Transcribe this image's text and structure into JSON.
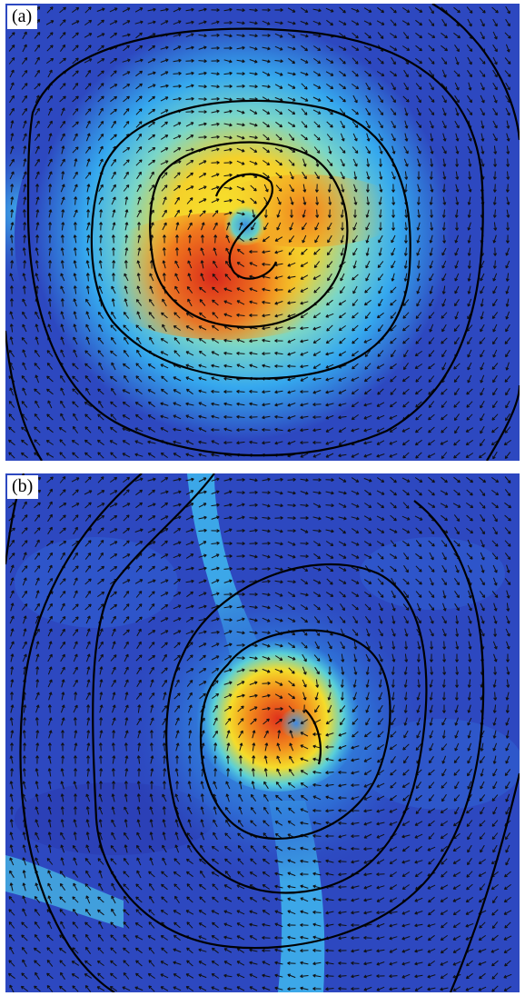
{
  "panels": [
    {
      "id": "a",
      "label": "(a)",
      "colormap": [
        "#2a3fb4",
        "#2f66d8",
        "#35b6f0",
        "#f5ea2a",
        "#f39a1b",
        "#d6221b"
      ]
    },
    {
      "id": "b",
      "label": "(b)",
      "colormap": [
        "#2a3fb4",
        "#2f66d8",
        "#35b6f0",
        "#f5ea2a",
        "#f39a1b",
        "#d6221b"
      ]
    }
  ],
  "colors": {
    "contour": "#000000",
    "arrow": "#111111",
    "background_field": "#2d48c0"
  }
}
